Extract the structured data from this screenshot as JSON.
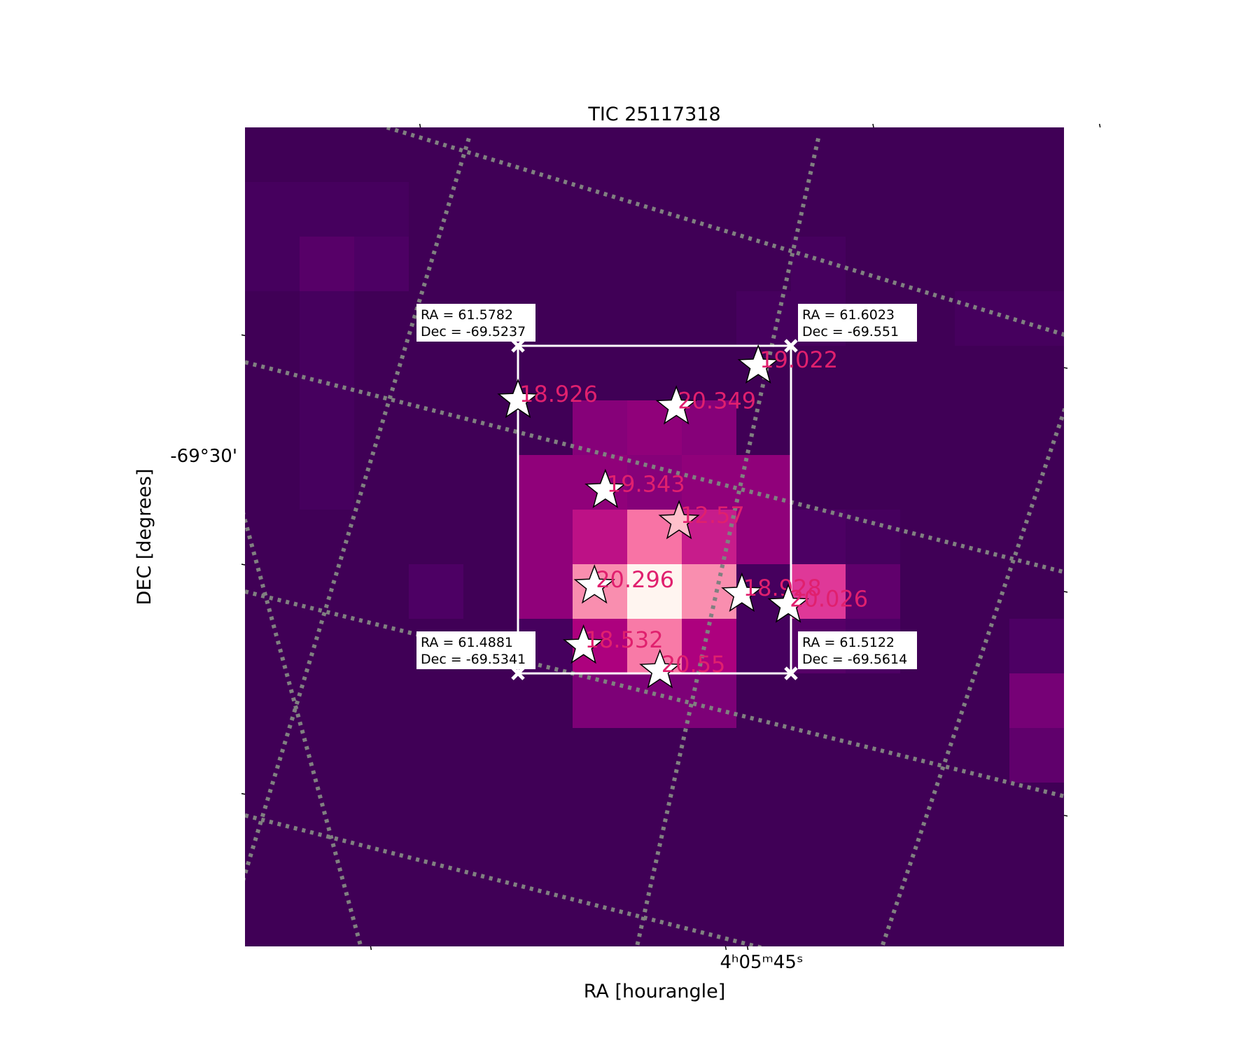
{
  "chart_data": {
    "type": "heatmap",
    "title": "TIC 25117318",
    "xlabel": "RA [hourangle]",
    "ylabel": "DEC [degrees]",
    "x_tick_labels": [
      "4ʰ05ᵐ45ˢ"
    ],
    "y_tick_labels": [
      "-69°30'"
    ],
    "grid": true,
    "grid_style": "dotted",
    "colormap": "RdPu",
    "grid_size": [
      15,
      15
    ],
    "pixel_values": [
      [
        1,
        1,
        1,
        1,
        1,
        1,
        1,
        1,
        1,
        1,
        1,
        1,
        1,
        1,
        1
      ],
      [
        2,
        2,
        2,
        1,
        1,
        1,
        1,
        1,
        1,
        1,
        1,
        1,
        1,
        1,
        1
      ],
      [
        2,
        4,
        3,
        1,
        1,
        1,
        1,
        1,
        1,
        1,
        2,
        1,
        1,
        1,
        1
      ],
      [
        1,
        2,
        1,
        1,
        1,
        1,
        1,
        1,
        1,
        2,
        2,
        1,
        1,
        2,
        2
      ],
      [
        1,
        2,
        1,
        1,
        1,
        1,
        1,
        1,
        1,
        1,
        1,
        1,
        1,
        1,
        1
      ],
      [
        1,
        2,
        1,
        1,
        1,
        1,
        11,
        12,
        11,
        1,
        1,
        1,
        1,
        1,
        1
      ],
      [
        1,
        2,
        1,
        1,
        1,
        12,
        12,
        11,
        12,
        12,
        1,
        1,
        1,
        1,
        1
      ],
      [
        1,
        1,
        1,
        1,
        1,
        12,
        18,
        34,
        20,
        12,
        3,
        2,
        1,
        1,
        1
      ],
      [
        1,
        1,
        1,
        3,
        1,
        12,
        38,
        54,
        38,
        2,
        25,
        5,
        1,
        1,
        1
      ],
      [
        1,
        1,
        1,
        1,
        1,
        2,
        15,
        35,
        15,
        2,
        4,
        3,
        1,
        1,
        3
      ],
      [
        1,
        1,
        1,
        1,
        1,
        1,
        10,
        10,
        10,
        1,
        1,
        1,
        1,
        1,
        9
      ],
      [
        1,
        1,
        1,
        1,
        1,
        1,
        1,
        1,
        1,
        1,
        1,
        1,
        1,
        1,
        5
      ],
      [
        1,
        1,
        1,
        1,
        1,
        1,
        1,
        1,
        1,
        1,
        1,
        1,
        1,
        1,
        1
      ],
      [
        1,
        1,
        1,
        1,
        1,
        1,
        1,
        1,
        1,
        1,
        1,
        1,
        1,
        1,
        1
      ],
      [
        1,
        1,
        1,
        1,
        1,
        1,
        1,
        1,
        1,
        1,
        1,
        1,
        1,
        1,
        1
      ]
    ],
    "corner_labels": [
      {
        "ra": "RA = 61.5782",
        "dec": "Dec = -69.5237"
      },
      {
        "ra": "RA = 61.6023",
        "dec": "Dec = -69.551"
      },
      {
        "ra": "RA = 61.4881",
        "dec": "Dec = -69.5341"
      },
      {
        "ra": "RA = 61.5122",
        "dec": "Dec = -69.5614"
      }
    ],
    "stars": [
      {
        "mag": "19.022",
        "target": false
      },
      {
        "mag": "18.926",
        "target": false
      },
      {
        "mag": "20.349",
        "target": false
      },
      {
        "mag": "19.343",
        "target": false
      },
      {
        "mag": "12.57",
        "target": true
      },
      {
        "mag": "20.296",
        "target": false
      },
      {
        "mag": "18.928",
        "target": false
      },
      {
        "mag": "20.026",
        "target": false
      },
      {
        "mag": "18.532",
        "target": false
      },
      {
        "mag": "20.55",
        "target": false
      }
    ],
    "colors": {
      "low": "#3a004f",
      "high": "#fff5f0",
      "grid": "#808080",
      "star_label": "#e0206e",
      "target_star": "#ffc0cb",
      "aperture": "#ffffff"
    }
  }
}
